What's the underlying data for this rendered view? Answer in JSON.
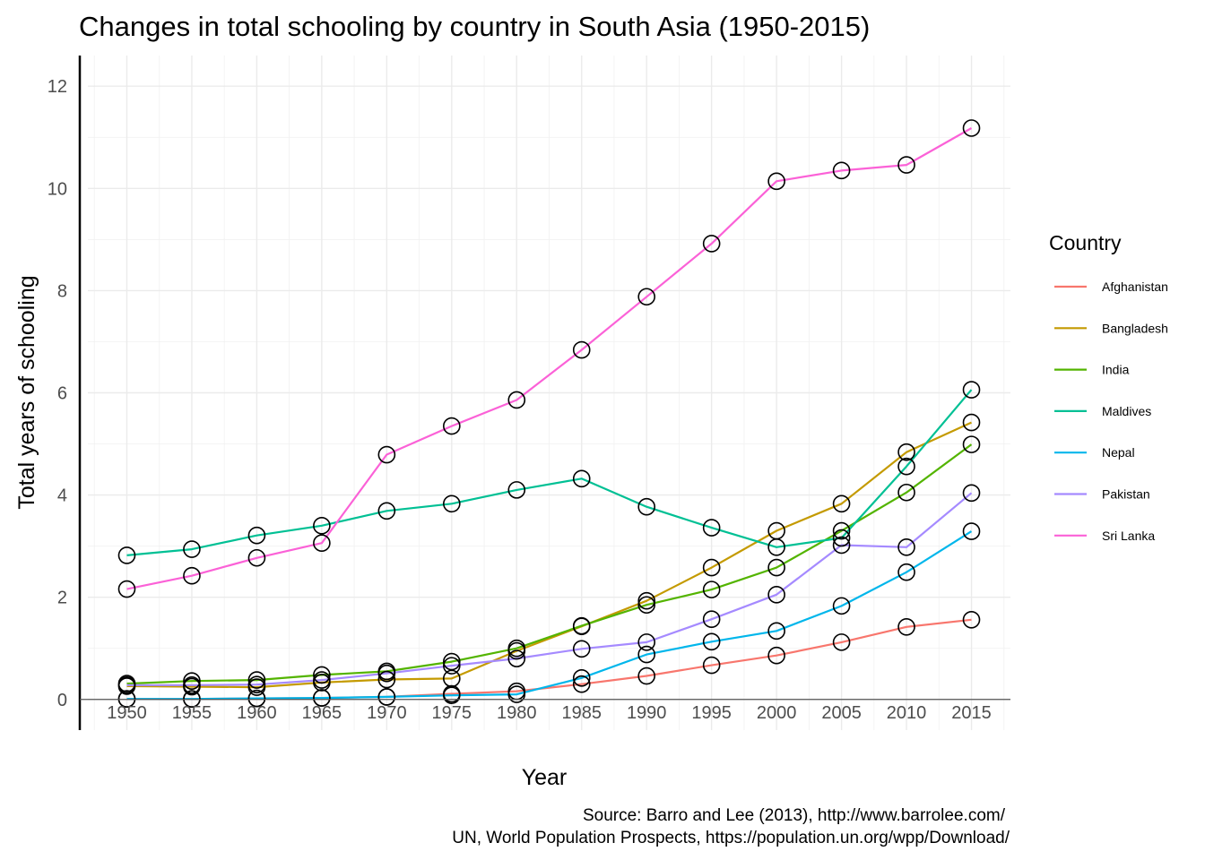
{
  "chart_data": {
    "type": "line",
    "title": "Changes in total schooling by country in South Asia (1950-2015)",
    "xlabel": "Year",
    "ylabel": "Total years of schooling",
    "xlim": [
      1947,
      2018
    ],
    "ylim": [
      -0.6,
      12.6
    ],
    "x_ticks": [
      1950,
      1955,
      1960,
      1965,
      1970,
      1975,
      1980,
      1985,
      1990,
      1995,
      2000,
      2005,
      2010,
      2015
    ],
    "y_ticks": [
      0,
      2,
      4,
      6,
      8,
      10,
      12
    ],
    "grid": true,
    "legend_title": "Country",
    "legend_position": "right",
    "caption": [
      "Source: Barro and Lee (2013), http://www.barrolee.com/",
      "UN, World Population Prospects, https://population.un.org/wpp/Download/"
    ],
    "x": [
      1950,
      1955,
      1960,
      1965,
      1970,
      1975,
      1980,
      1985,
      1990,
      1995,
      2000,
      2005,
      2010,
      2015
    ],
    "series": [
      {
        "name": "Afghanistan",
        "color": "#F8766D",
        "values": [
          0.01,
          0.01,
          0.02,
          0.03,
          0.05,
          0.11,
          0.16,
          0.3,
          0.46,
          0.67,
          0.86,
          1.12,
          1.42,
          1.56
        ]
      },
      {
        "name": "Bangladesh",
        "color": "#C49A00",
        "values": [
          0.26,
          0.25,
          0.24,
          0.33,
          0.39,
          0.41,
          0.95,
          1.43,
          1.93,
          2.58,
          3.3,
          3.83,
          4.84,
          5.42
        ]
      },
      {
        "name": "India",
        "color": "#53B400",
        "values": [
          0.31,
          0.36,
          0.38,
          0.48,
          0.55,
          0.74,
          1.0,
          1.44,
          1.85,
          2.15,
          2.58,
          3.3,
          4.05,
          4.99
        ]
      },
      {
        "name": "Maldives",
        "color": "#00C094",
        "values": [
          2.82,
          2.94,
          3.21,
          3.4,
          3.69,
          3.83,
          4.1,
          4.32,
          3.77,
          3.36,
          2.98,
          3.16,
          4.56,
          6.06
        ]
      },
      {
        "name": "Nepal",
        "color": "#00B6EB",
        "values": [
          0.01,
          0.01,
          0.02,
          0.03,
          0.05,
          0.08,
          0.1,
          0.42,
          0.88,
          1.13,
          1.34,
          1.83,
          2.49,
          3.29
        ]
      },
      {
        "name": "Pakistan",
        "color": "#A58AFF",
        "values": [
          0.28,
          0.28,
          0.29,
          0.38,
          0.51,
          0.66,
          0.8,
          0.99,
          1.12,
          1.57,
          2.05,
          3.02,
          2.98,
          4.04
        ]
      },
      {
        "name": "Sri Lanka",
        "color": "#FB61D7",
        "values": [
          2.16,
          2.42,
          2.77,
          3.06,
          4.79,
          5.35,
          5.86,
          6.84,
          7.88,
          8.92,
          10.14,
          10.35,
          10.46,
          11.18
        ]
      }
    ]
  }
}
